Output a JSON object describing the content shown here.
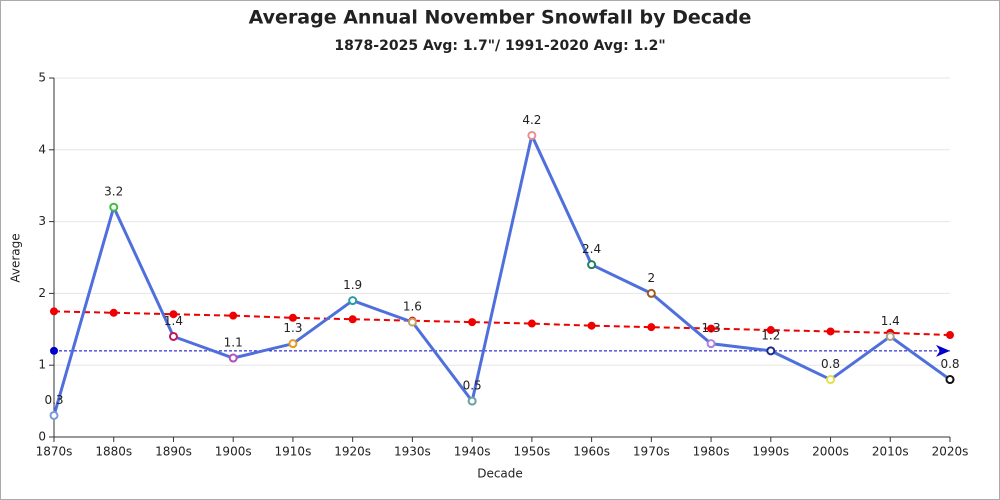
{
  "chart_data": {
    "type": "line",
    "title": "Average Annual November Snowfall by Decade",
    "subtitle": "1878-2025 Avg: 1.7\"/ 1991-2020 Avg: 1.2\"",
    "x_label": "Decade",
    "y_label": "Average",
    "categories": [
      "1870s",
      "1880s",
      "1890s",
      "1900s",
      "1910s",
      "1920s",
      "1930s",
      "1940s",
      "1950s",
      "1960s",
      "1970s",
      "1980s",
      "1990s",
      "2000s",
      "2010s",
      "2020s"
    ],
    "series": [
      {
        "color": "#4f6fdc",
        "data_labels": true,
        "marker_colors": [
          "#7a9bd8",
          "#3fbf3f",
          "#c0185a",
          "#b04fc0",
          "#e89a20",
          "#20a0a0",
          "#c8a060",
          "#6aa0a0",
          "#e89090",
          "#208060",
          "#a05a20",
          "#b080e0",
          "#1a2a8a",
          "#e0e050",
          "#b0a080",
          "#111111"
        ],
        "values": [
          0.3,
          3.2,
          1.4,
          1.1,
          1.3,
          1.9,
          1.6,
          0.5,
          4.2,
          2.4,
          2,
          1.3,
          1.2,
          0.8,
          1.4,
          0.8
        ]
      },
      {
        "color": "#ee0000",
        "dashed": true,
        "values": [
          1.75,
          1.73,
          1.71,
          1.69,
          1.66,
          1.64,
          1.62,
          1.6,
          1.58,
          1.55,
          1.53,
          1.51,
          1.49,
          1.47,
          1.45,
          1.42
        ]
      }
    ],
    "reference_lines": [
      {
        "value": 1.2,
        "color": "#0000cc"
      }
    ],
    "ylim": [
      0,
      5
    ],
    "yticks": [
      0,
      1,
      2,
      3,
      4,
      5
    ],
    "grid": true
  }
}
